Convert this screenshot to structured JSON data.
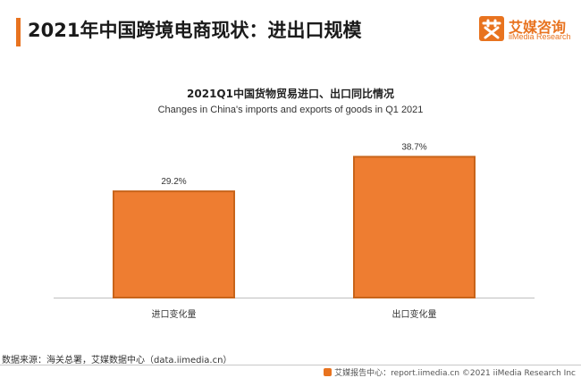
{
  "header": {
    "title": "2021年中国跨境电商现状：进出口规模",
    "accent_color": "#e8731f"
  },
  "logo": {
    "name": "艾媒咨询",
    "subtitle": "iiMedia Research"
  },
  "chart_data": {
    "type": "bar",
    "title": "2021Q1中国货物贸易进口、出口同比情况",
    "subtitle": "Changes in China's imports and exports of goods in Q1 2021",
    "categories": [
      "进口变化量",
      "出口变化量"
    ],
    "values": [
      29.2,
      38.7
    ],
    "value_labels": [
      "29.2%",
      "38.7%"
    ],
    "unit": "%",
    "ylim": [
      0,
      42
    ],
    "grid": false,
    "legend": "none",
    "bar_color": "#ee7d31",
    "bar_edge_color": "#c8641a"
  },
  "source": "数据来源：海关总署，艾媒数据中心（data.iimedia.cn）",
  "footer": {
    "text": "艾媒报告中心：report.iimedia.cn   ©2021  iiMedia Research  Inc",
    "icon": "iimedia-logo-icon"
  }
}
